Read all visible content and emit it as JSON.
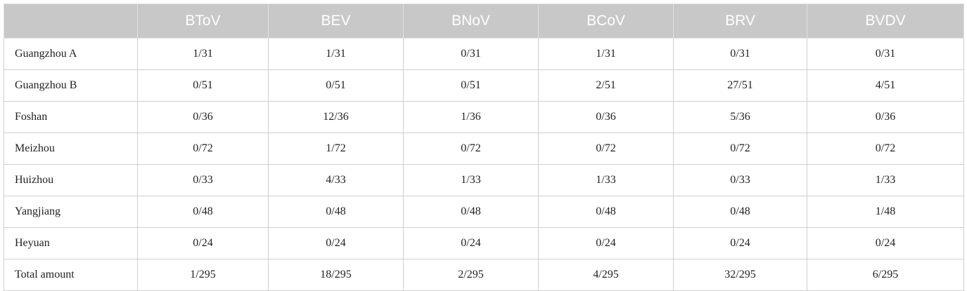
{
  "table": {
    "columns": [
      "BToV",
      "BEV",
      "BNoV",
      "BCoV",
      "BRV",
      "BVDV"
    ],
    "rows": [
      [
        "Guangzhou A",
        "1/31",
        "1/31",
        "0/31",
        "1/31",
        "0/31",
        "0/31"
      ],
      [
        "Guangzhou B",
        "0/51",
        "0/51",
        "0/51",
        "2/51",
        "27/51",
        "4/51"
      ],
      [
        "Foshan",
        "0/36",
        "12/36",
        "1/36",
        "0/36",
        "5/36",
        "0/36"
      ],
      [
        "Meizhou",
        "0/72",
        "1/72",
        "0/72",
        "0/72",
        "0/72",
        "0/72"
      ],
      [
        "Huizhou",
        "0/33",
        "4/33",
        "1/33",
        "1/33",
        "0/33",
        "1/33"
      ],
      [
        "Yangjiang",
        "0/48",
        "0/48",
        "0/48",
        "0/48",
        "0/48",
        "1/48"
      ],
      [
        "Heyuan",
        "0/24",
        "0/24",
        "0/24",
        "0/24",
        "0/24",
        "0/24"
      ],
      [
        "Total amount",
        "1/295",
        "18/295",
        "2/295",
        "4/295",
        "32/295",
        "6/295"
      ]
    ]
  }
}
